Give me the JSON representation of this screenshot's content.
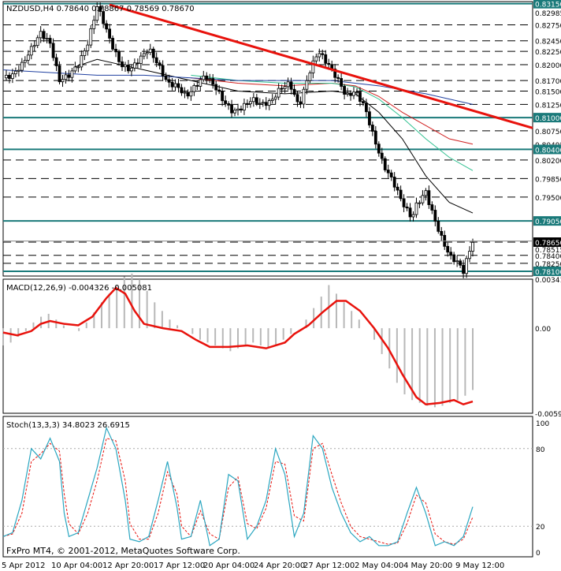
{
  "window": {
    "symbol_header": "NZDUSD,H4  0.78640 0.78867 0.78569 0.78670",
    "copyright": "FxPro MT4, © 2001-2012, MetaQuotes Software Corp."
  },
  "colors": {
    "background": "#ffffff",
    "teal": "#1a7a7a",
    "candle": "#000000",
    "trendline": "#e8120c",
    "macd_signal": "#e8120c",
    "macd_hist": "#b8b8b8",
    "stoch_main": "#2aa6c0",
    "stoch_signal": "#e8120c",
    "ma_black": "#000000",
    "ma_red": "#d02020",
    "ma_green": "#30c090",
    "ma_blue": "#2040a0"
  },
  "chart_data": [
    {
      "type": "candlestick",
      "title": "NZDUSD,H4  0.78640 0.78867 0.78569 0.78670",
      "ylim": [
        0.7801,
        0.8319
      ],
      "price_labels": [
        "0.83150",
        "0.82985",
        "0.82750",
        "0.82450",
        "0.82250",
        "0.82000",
        "0.81700",
        "0.81500",
        "0.81250",
        "0.81000",
        "0.80750",
        "0.80495",
        "0.80400",
        "0.80200",
        "0.79850",
        "0.79500",
        "0.79050",
        "0.78650",
        "0.78515",
        "0.78400",
        "0.78250",
        "0.78100"
      ],
      "solid_levels": [
        0.8315,
        0.81,
        0.804,
        0.7905,
        0.781
      ],
      "dashed_levels": [
        0.8275,
        0.8245,
        0.8225,
        0.82,
        0.817,
        0.815,
        0.8125,
        0.8075,
        0.802,
        0.7985,
        0.795,
        0.7865,
        0.784,
        0.7825
      ],
      "current_price": 0.7867,
      "trendline": [
        [
          0,
          0.8313
        ],
        [
          100,
          0.8125
        ]
      ],
      "close_path": [
        [
          0,
          0.8175
        ],
        [
          2,
          0.818
        ],
        [
          4,
          0.82
        ],
        [
          6,
          0.823
        ],
        [
          8,
          0.826
        ],
        [
          10,
          0.824
        ],
        [
          12,
          0.817
        ],
        [
          14,
          0.818
        ],
        [
          16,
          0.82
        ],
        [
          18,
          0.824
        ],
        [
          20,
          0.831
        ],
        [
          21,
          0.829
        ],
        [
          23,
          0.824
        ],
        [
          25,
          0.82
        ],
        [
          27,
          0.819
        ],
        [
          29,
          0.821
        ],
        [
          31,
          0.823
        ],
        [
          33,
          0.82
        ],
        [
          35,
          0.8165
        ],
        [
          37,
          0.816
        ],
        [
          39,
          0.814
        ],
        [
          41,
          0.816
        ],
        [
          43,
          0.818
        ],
        [
          45,
          0.816
        ],
        [
          47,
          0.813
        ],
        [
          49,
          0.811
        ],
        [
          51,
          0.812
        ],
        [
          53,
          0.8135
        ],
        [
          55,
          0.8125
        ],
        [
          57,
          0.813
        ],
        [
          59,
          0.8155
        ],
        [
          61,
          0.8165
        ],
        [
          63,
          0.812
        ],
        [
          65,
          0.818
        ],
        [
          67,
          0.8225
        ],
        [
          68,
          0.8215
        ],
        [
          70,
          0.819
        ],
        [
          72,
          0.816
        ],
        [
          73,
          0.814
        ],
        [
          75,
          0.815
        ],
        [
          77,
          0.812
        ],
        [
          79,
          0.806
        ],
        [
          81,
          0.801
        ],
        [
          83,
          0.798
        ],
        [
          85,
          0.794
        ],
        [
          87,
          0.791
        ],
        [
          88,
          0.7935
        ],
        [
          90,
          0.796
        ],
        [
          91,
          0.793
        ],
        [
          93,
          0.788
        ],
        [
          95,
          0.784
        ],
        [
          97,
          0.7825
        ],
        [
          98,
          0.781
        ],
        [
          99,
          0.784
        ],
        [
          100,
          0.7867
        ]
      ],
      "moving_averages": [
        {
          "color": "#000000",
          "points": [
            [
              15,
              0.8195
            ],
            [
              20,
              0.821
            ],
            [
              25,
              0.82
            ],
            [
              30,
              0.819
            ],
            [
              40,
              0.817
            ],
            [
              50,
              0.815
            ],
            [
              60,
              0.8145
            ],
            [
              70,
              0.815
            ],
            [
              75,
              0.8145
            ],
            [
              80,
              0.811
            ],
            [
              85,
              0.806
            ],
            [
              90,
              0.799
            ],
            [
              95,
              0.794
            ],
            [
              100,
              0.792
            ]
          ]
        },
        {
          "color": "#d02020",
          "points": [
            [
              40,
              0.8175
            ],
            [
              50,
              0.8165
            ],
            [
              60,
              0.816
            ],
            [
              70,
              0.8165
            ],
            [
              75,
              0.816
            ],
            [
              80,
              0.814
            ],
            [
              85,
              0.811
            ],
            [
              90,
              0.8085
            ],
            [
              95,
              0.806
            ],
            [
              100,
              0.805
            ]
          ]
        },
        {
          "color": "#30c090",
          "points": [
            [
              40,
              0.818
            ],
            [
              50,
              0.817
            ],
            [
              60,
              0.8165
            ],
            [
              70,
              0.8165
            ],
            [
              75,
              0.8158
            ],
            [
              80,
              0.8135
            ],
            [
              85,
              0.81
            ],
            [
              90,
              0.806
            ],
            [
              95,
              0.8025
            ],
            [
              100,
              0.8
            ]
          ]
        },
        {
          "color": "#2040a0",
          "points": [
            [
              0,
              0.819
            ],
            [
              10,
              0.8185
            ],
            [
              20,
              0.818
            ],
            [
              30,
              0.818
            ],
            [
              40,
              0.8175
            ],
            [
              50,
              0.817
            ],
            [
              60,
              0.817
            ],
            [
              70,
              0.817
            ],
            [
              80,
              0.816
            ],
            [
              90,
              0.8145
            ],
            [
              100,
              0.8125
            ]
          ]
        }
      ]
    },
    {
      "type": "bar",
      "title": "MACD(12,26,9) -0.004326 -0.005081",
      "ylim": [
        -0.00592,
        0.00341
      ],
      "tick_labels": [
        "0.00341",
        "0.00",
        "-0.00592"
      ],
      "signal": [
        [
          0,
          -0.0003
        ],
        [
          3,
          -0.0005
        ],
        [
          6,
          -0.0002
        ],
        [
          8,
          0.0003
        ],
        [
          10,
          0.0005
        ],
        [
          13,
          0.0003
        ],
        [
          16,
          0.0002
        ],
        [
          19,
          0.0008
        ],
        [
          22,
          0.0021
        ],
        [
          24,
          0.0028
        ],
        [
          26,
          0.0024
        ],
        [
          28,
          0.0012
        ],
        [
          30,
          0.0003
        ],
        [
          34,
          0.0
        ],
        [
          38,
          -0.0002
        ],
        [
          41,
          -0.0008
        ],
        [
          44,
          -0.0013
        ],
        [
          48,
          -0.0013
        ],
        [
          52,
          -0.0012
        ],
        [
          56,
          -0.0014
        ],
        [
          60,
          -0.001
        ],
        [
          62,
          -0.0004
        ],
        [
          65,
          0.0002
        ],
        [
          68,
          0.0011
        ],
        [
          71,
          0.0019
        ],
        [
          73,
          0.0019
        ],
        [
          76,
          0.0012
        ],
        [
          79,
          0.0
        ],
        [
          82,
          -0.0014
        ],
        [
          85,
          -0.0032
        ],
        [
          88,
          -0.0048
        ],
        [
          90,
          -0.0053
        ],
        [
          93,
          -0.0052
        ],
        [
          96,
          -0.005
        ],
        [
          98,
          -0.0053
        ],
        [
          100,
          -0.0051
        ]
      ],
      "hist_values": [
        -0.0012,
        -0.001,
        -0.0006,
        -0.0002,
        0.0004,
        0.0008,
        0.001,
        0.0006,
        0.0002,
        0.0,
        -0.0002,
        0.0004,
        0.0011,
        0.0018,
        0.0024,
        0.003,
        0.0036,
        0.0038,
        0.0034,
        0.0026,
        0.0018,
        0.0012,
        0.0006,
        0.0002,
        0.0,
        -0.0004,
        -0.0008,
        -0.001,
        -0.0012,
        -0.0014,
        -0.0016,
        -0.0014,
        -0.0012,
        -0.001,
        -0.0012,
        -0.0014,
        -0.0012,
        -0.0008,
        -0.0004,
        0.0,
        0.0006,
        0.0014,
        0.0022,
        0.003,
        0.0024,
        0.0018,
        0.0012,
        0.0006,
        0.0,
        -0.0008,
        -0.0018,
        -0.0028,
        -0.0038,
        -0.0046,
        -0.005,
        -0.0052,
        -0.0054,
        -0.0055,
        -0.0054,
        -0.0052,
        -0.005,
        -0.0047,
        -0.0043
      ]
    },
    {
      "type": "line",
      "title": "Stoch(13,3,3) 34.8023 26.6915",
      "ylim": [
        0,
        100
      ],
      "tick_labels": [
        "100",
        "80",
        "20",
        "0"
      ],
      "series": [
        {
          "points": [
            [
              0,
              12
            ],
            [
              2,
              15
            ],
            [
              4,
              40
            ],
            [
              6,
              80
            ],
            [
              8,
              72
            ],
            [
              10,
              88
            ],
            [
              12,
              70
            ],
            [
              13,
              30
            ],
            [
              14,
              12
            ],
            [
              16,
              15
            ],
            [
              18,
              40
            ],
            [
              20,
              65
            ],
            [
              22,
              96
            ],
            [
              24,
              80
            ],
            [
              26,
              40
            ],
            [
              27,
              10
            ],
            [
              29,
              8
            ],
            [
              31,
              12
            ],
            [
              33,
              40
            ],
            [
              35,
              70
            ],
            [
              37,
              35
            ],
            [
              38,
              10
            ],
            [
              40,
              12
            ],
            [
              42,
              40
            ],
            [
              44,
              5
            ],
            [
              46,
              10
            ],
            [
              48,
              60
            ],
            [
              50,
              55
            ],
            [
              52,
              10
            ],
            [
              54,
              20
            ],
            [
              56,
              40
            ],
            [
              58,
              80
            ],
            [
              60,
              60
            ],
            [
              62,
              12
            ],
            [
              64,
              30
            ],
            [
              66,
              90
            ],
            [
              68,
              80
            ],
            [
              70,
              50
            ],
            [
              72,
              30
            ],
            [
              74,
              15
            ],
            [
              76,
              8
            ],
            [
              78,
              12
            ],
            [
              80,
              5
            ],
            [
              82,
              5
            ],
            [
              84,
              8
            ],
            [
              86,
              30
            ],
            [
              88,
              50
            ],
            [
              90,
              30
            ],
            [
              92,
              5
            ],
            [
              94,
              8
            ],
            [
              96,
              5
            ],
            [
              98,
              12
            ],
            [
              100,
              35
            ]
          ]
        },
        {
          "points": [
            [
              0,
              12
            ],
            [
              2,
              14
            ],
            [
              4,
              30
            ],
            [
              6,
              70
            ],
            [
              8,
              76
            ],
            [
              10,
              84
            ],
            [
              12,
              78
            ],
            [
              13,
              45
            ],
            [
              14,
              22
            ],
            [
              16,
              14
            ],
            [
              18,
              30
            ],
            [
              20,
              55
            ],
            [
              22,
              88
            ],
            [
              24,
              86
            ],
            [
              26,
              55
            ],
            [
              27,
              22
            ],
            [
              29,
              10
            ],
            [
              31,
              10
            ],
            [
              33,
              30
            ],
            [
              35,
              62
            ],
            [
              37,
              45
            ],
            [
              38,
              20
            ],
            [
              40,
              12
            ],
            [
              42,
              32
            ],
            [
              44,
              14
            ],
            [
              46,
              10
            ],
            [
              48,
              50
            ],
            [
              50,
              58
            ],
            [
              52,
              22
            ],
            [
              54,
              18
            ],
            [
              56,
              34
            ],
            [
              58,
              70
            ],
            [
              60,
              68
            ],
            [
              62,
              28
            ],
            [
              64,
              24
            ],
            [
              66,
              80
            ],
            [
              68,
              84
            ],
            [
              70,
              60
            ],
            [
              72,
              38
            ],
            [
              74,
              20
            ],
            [
              76,
              12
            ],
            [
              78,
              10
            ],
            [
              80,
              8
            ],
            [
              82,
              6
            ],
            [
              84,
              7
            ],
            [
              86,
              22
            ],
            [
              88,
              44
            ],
            [
              90,
              38
            ],
            [
              92,
              14
            ],
            [
              94,
              8
            ],
            [
              96,
              6
            ],
            [
              98,
              10
            ],
            [
              100,
              27
            ]
          ]
        }
      ]
    }
  ],
  "x_labels": [
    "5 Apr 2012",
    "10 Apr 04:00",
    "12 Apr 20:00",
    "17 Apr 12:00",
    "20 Apr 04:00",
    "24 Apr 20:00",
    "27 Apr 12:00",
    "2 May 04:00",
    "4 May 20:00",
    "9 May 12:00"
  ]
}
